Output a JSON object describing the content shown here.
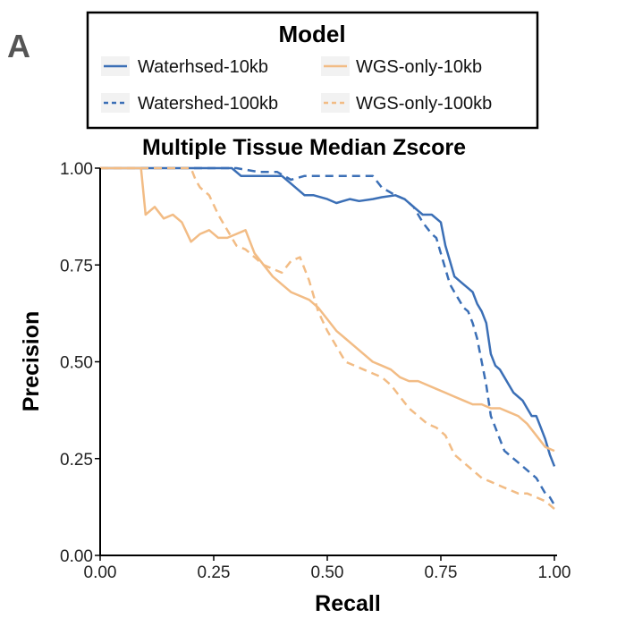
{
  "panel_label": "A",
  "chart_data": {
    "type": "line",
    "title": "Multiple Tissue Median Zscore",
    "xlabel": "Recall",
    "ylabel": "Precision",
    "xlim": [
      0,
      1
    ],
    "ylim": [
      0,
      1
    ],
    "x_ticks": [
      0,
      0.25,
      0.5,
      0.75,
      1.0
    ],
    "x_tick_labels": [
      "0.00",
      "0.25",
      "0.50",
      "0.75",
      "1.00"
    ],
    "y_ticks": [
      0,
      0.25,
      0.5,
      0.75,
      1.0
    ],
    "y_tick_labels": [
      "0.00",
      "0.25",
      "0.50",
      "0.75",
      "1.00"
    ],
    "grid": false,
    "legend": {
      "title": "Model",
      "placement": "top",
      "entries": [
        {
          "label": "Waterhsed-10kb",
          "series": "Waterhsed-10kb"
        },
        {
          "label": "WGS-only-10kb",
          "series": "WGS-only-10kb"
        },
        {
          "label": "Watershed-100kb",
          "series": "Watershed-100kb"
        },
        {
          "label": "WGS-only-100kb",
          "series": "WGS-only-100kb"
        }
      ]
    },
    "series": [
      {
        "name": "Waterhsed-10kb",
        "color": "#3b6fb6",
        "dash": "solid",
        "x": [
          0,
          0.29,
          0.31,
          0.4,
          0.42,
          0.45,
          0.47,
          0.5,
          0.52,
          0.55,
          0.57,
          0.6,
          0.62,
          0.65,
          0.67,
          0.69,
          0.71,
          0.73,
          0.75,
          0.76,
          0.77,
          0.78,
          0.79,
          0.8,
          0.81,
          0.82,
          0.83,
          0.84,
          0.85,
          0.86,
          0.87,
          0.88,
          0.89,
          0.9,
          0.91,
          0.92,
          0.93,
          0.94,
          0.95,
          0.96,
          0.97,
          0.98,
          0.99,
          1.0
        ],
        "y": [
          1.0,
          1.0,
          0.98,
          0.98,
          0.96,
          0.93,
          0.93,
          0.92,
          0.91,
          0.92,
          0.915,
          0.92,
          0.925,
          0.93,
          0.92,
          0.9,
          0.88,
          0.88,
          0.86,
          0.8,
          0.76,
          0.72,
          0.71,
          0.7,
          0.69,
          0.68,
          0.65,
          0.63,
          0.6,
          0.52,
          0.49,
          0.48,
          0.46,
          0.44,
          0.42,
          0.41,
          0.4,
          0.38,
          0.36,
          0.36,
          0.33,
          0.3,
          0.26,
          0.23
        ]
      },
      {
        "name": "Watershed-100kb",
        "color": "#3b6fb6",
        "dash": "dashed",
        "x": [
          0,
          0.3,
          0.35,
          0.39,
          0.42,
          0.45,
          0.47,
          0.5,
          0.52,
          0.55,
          0.58,
          0.6,
          0.62,
          0.65,
          0.67,
          0.69,
          0.71,
          0.73,
          0.74,
          0.75,
          0.76,
          0.77,
          0.78,
          0.79,
          0.8,
          0.81,
          0.82,
          0.83,
          0.84,
          0.85,
          0.86,
          0.87,
          0.88,
          0.89,
          0.9,
          0.91,
          0.92,
          0.93,
          0.94,
          0.95,
          0.96,
          0.97,
          0.98,
          0.99,
          1.0
        ],
        "y": [
          1.0,
          1.0,
          0.99,
          0.99,
          0.97,
          0.98,
          0.98,
          0.98,
          0.98,
          0.98,
          0.98,
          0.98,
          0.95,
          0.93,
          0.92,
          0.9,
          0.86,
          0.83,
          0.82,
          0.78,
          0.74,
          0.7,
          0.68,
          0.66,
          0.64,
          0.63,
          0.6,
          0.56,
          0.5,
          0.44,
          0.36,
          0.33,
          0.3,
          0.27,
          0.26,
          0.25,
          0.24,
          0.23,
          0.22,
          0.21,
          0.2,
          0.18,
          0.16,
          0.15,
          0.13
        ]
      },
      {
        "name": "WGS-only-10kb",
        "color": "#f2bc85",
        "dash": "solid",
        "x": [
          0,
          0.09,
          0.1,
          0.12,
          0.14,
          0.16,
          0.18,
          0.2,
          0.22,
          0.24,
          0.26,
          0.28,
          0.3,
          0.32,
          0.34,
          0.36,
          0.38,
          0.4,
          0.42,
          0.44,
          0.46,
          0.48,
          0.5,
          0.52,
          0.54,
          0.56,
          0.58,
          0.6,
          0.62,
          0.64,
          0.66,
          0.68,
          0.7,
          0.72,
          0.74,
          0.76,
          0.78,
          0.8,
          0.82,
          0.84,
          0.86,
          0.88,
          0.9,
          0.92,
          0.94,
          0.96,
          0.98,
          1.0
        ],
        "y": [
          1.0,
          1.0,
          0.88,
          0.9,
          0.87,
          0.88,
          0.86,
          0.81,
          0.83,
          0.84,
          0.82,
          0.82,
          0.83,
          0.84,
          0.78,
          0.75,
          0.72,
          0.7,
          0.68,
          0.67,
          0.66,
          0.64,
          0.61,
          0.58,
          0.56,
          0.54,
          0.52,
          0.5,
          0.49,
          0.48,
          0.46,
          0.45,
          0.45,
          0.44,
          0.43,
          0.42,
          0.41,
          0.4,
          0.39,
          0.39,
          0.38,
          0.38,
          0.37,
          0.36,
          0.34,
          0.31,
          0.28,
          0.27
        ]
      },
      {
        "name": "WGS-only-100kb",
        "color": "#f2bc85",
        "dash": "dashed",
        "x": [
          0,
          0.2,
          0.21,
          0.22,
          0.24,
          0.26,
          0.28,
          0.3,
          0.32,
          0.34,
          0.36,
          0.38,
          0.4,
          0.42,
          0.44,
          0.46,
          0.48,
          0.5,
          0.52,
          0.54,
          0.56,
          0.58,
          0.6,
          0.62,
          0.64,
          0.66,
          0.68,
          0.7,
          0.72,
          0.74,
          0.76,
          0.78,
          0.8,
          0.82,
          0.84,
          0.86,
          0.88,
          0.9,
          0.92,
          0.94,
          0.96,
          0.98,
          1.0
        ],
        "y": [
          1.0,
          1.0,
          0.97,
          0.95,
          0.93,
          0.88,
          0.84,
          0.8,
          0.79,
          0.77,
          0.75,
          0.74,
          0.73,
          0.76,
          0.77,
          0.71,
          0.63,
          0.58,
          0.54,
          0.5,
          0.49,
          0.48,
          0.47,
          0.46,
          0.44,
          0.41,
          0.38,
          0.36,
          0.34,
          0.33,
          0.31,
          0.26,
          0.24,
          0.22,
          0.2,
          0.19,
          0.18,
          0.17,
          0.16,
          0.16,
          0.15,
          0.14,
          0.12
        ]
      }
    ]
  }
}
